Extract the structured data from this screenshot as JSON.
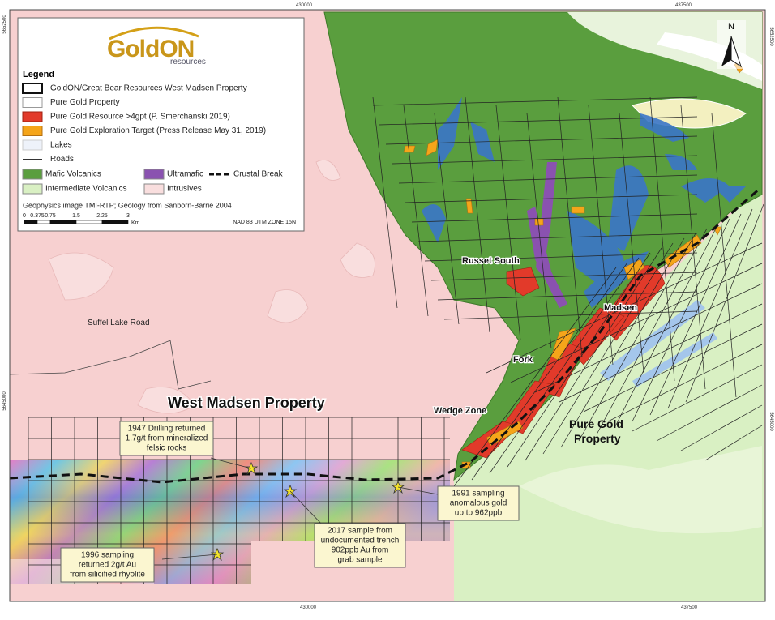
{
  "logo": {
    "name": "GoldON",
    "tagline": "resources"
  },
  "coordinates": {
    "top": [
      "430000",
      "437500"
    ],
    "bottom": [
      "430000",
      "437500"
    ],
    "left": [
      "5652500",
      "5645000"
    ],
    "right": [
      "5652500",
      "5645000"
    ]
  },
  "legend": {
    "title": "Legend",
    "items": [
      "GoldON/Great Bear Resources West Madsen Property",
      "Pure Gold Property",
      "Pure Gold Resource >4gpt (P. Smerchanski 2019)",
      "Pure Gold Exploration Target (Press Release May 31, 2019)",
      "Lakes",
      "Roads"
    ],
    "geology": [
      "Mafic Volcanics",
      "Ultramafic",
      "Crustal Break",
      "Intermediate Volcanics",
      "Intrusives"
    ],
    "source": "Geophysics image TMI-RTP; Geology from Sanborn-Barrie 2004",
    "scale": [
      "0",
      "0.375",
      "0.75",
      "1.5",
      "2.25",
      "3"
    ],
    "scale_unit": "Km",
    "projection": "NAD 83 UTM ZONE 15N"
  },
  "north": "N",
  "labels": {
    "west_madsen": "West Madsen Property",
    "pure_gold": [
      "Pure Gold",
      "Property"
    ],
    "road": "Suffel Lake Road",
    "russet": "Russet South",
    "madsen": "Madsen",
    "fork": "Fork",
    "wedge": "Wedge Zone"
  },
  "callouts": [
    [
      "1947 Drilling returned",
      "1.7g/t from mineralized",
      "felsic rocks"
    ],
    [
      "2017 sample from",
      "undocumented trench",
      "902ppb Au from",
      "grab sample"
    ],
    [
      "1991 sampling",
      "anomalous gold",
      "up to 962ppb"
    ],
    [
      "1996 sampling",
      "returned 2g/t Au",
      "from silicified rhyolite"
    ]
  ]
}
